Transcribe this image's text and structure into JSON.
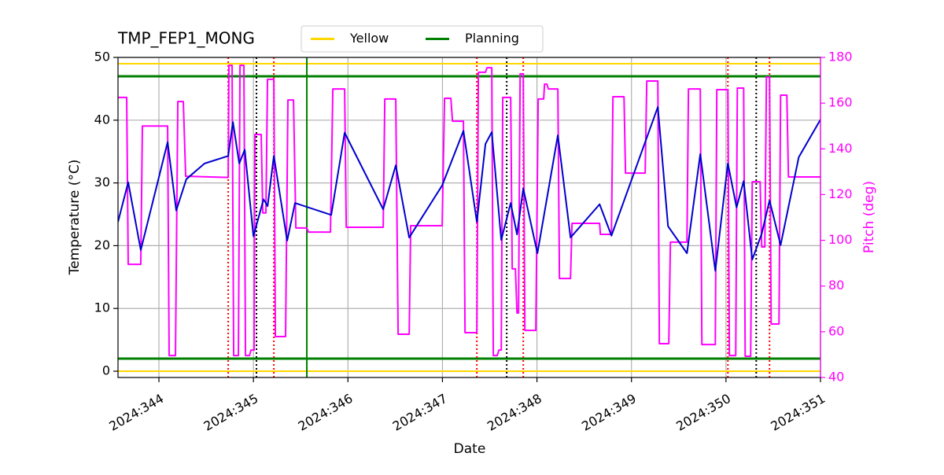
{
  "chart_data": {
    "type": "line",
    "title": "TMP_FEP1_MONG",
    "xlabel": "Date",
    "ylabel": "Temperature (°C)",
    "y2label": "Pitch (deg)",
    "grid": true,
    "xlim": [
      343.567,
      351
    ],
    "xticks": [
      {
        "value": 344,
        "label": "2024:344"
      },
      {
        "value": 345,
        "label": "2024:345"
      },
      {
        "value": 346,
        "label": "2024:346"
      },
      {
        "value": 347,
        "label": "2024:347"
      },
      {
        "value": 348,
        "label": "2024:348"
      },
      {
        "value": 349,
        "label": "2024:349"
      },
      {
        "value": 350,
        "label": "2024:350"
      },
      {
        "value": 351,
        "label": "2024:351"
      }
    ],
    "ylim": [
      -1,
      50
    ],
    "yticks": [
      0,
      10,
      20,
      30,
      40,
      50
    ],
    "y2lim": [
      40,
      180
    ],
    "y2ticks": [
      40,
      60,
      80,
      100,
      120,
      140,
      160,
      180
    ],
    "legend": "upper center",
    "reference_lines": [
      {
        "name": "Yellow",
        "color": "#ffd700",
        "values": [
          0,
          49
        ]
      },
      {
        "name": "Planning",
        "color": "#008000",
        "values": [
          2,
          47
        ]
      }
    ],
    "vlines": [
      {
        "color": "#ff0000",
        "style": "dotted",
        "x": [
          344.733,
          345.216,
          347.364,
          347.855,
          350.02,
          350.461
        ]
      },
      {
        "color": "#000000",
        "style": "dotted",
        "x": [
          345.032,
          347.68,
          350.32
        ]
      },
      {
        "color": "#008000",
        "style": "solid",
        "x": [
          345.565
        ]
      }
    ],
    "series": [
      {
        "color": "#0000cd",
        "x": [
          343.567,
          343.675,
          343.808,
          344.092,
          344.183,
          344.29,
          344.483,
          344.733,
          344.783,
          344.85,
          344.908,
          345.0,
          345.107,
          345.15,
          345.216,
          345.357,
          345.44,
          345.823,
          345.965,
          346.373,
          346.506,
          346.648,
          346.997,
          347.222,
          347.364,
          347.455,
          347.522,
          347.622,
          347.722,
          347.789,
          347.855,
          348.005,
          348.221,
          348.355,
          348.663,
          348.788,
          349.279,
          349.387,
          349.587,
          349.728,
          349.887,
          350.02,
          350.112,
          350.187,
          350.278,
          350.378,
          350.461,
          350.578,
          350.77,
          351.0
        ],
        "values": [
          23.8,
          30.1,
          19.3,
          36.5,
          25.6,
          30.6,
          33.1,
          34.3,
          39.7,
          33.1,
          35.3,
          21.5,
          27.4,
          26.3,
          34.3,
          20.8,
          26.8,
          24.9,
          38.0,
          25.8,
          32.8,
          21.3,
          29.6,
          38.3,
          23.8,
          36.2,
          38.1,
          20.9,
          26.8,
          21.8,
          29.1,
          18.8,
          37.6,
          21.3,
          26.6,
          21.6,
          42.1,
          23.1,
          18.8,
          34.6,
          16.0,
          33.1,
          26.1,
          30.3,
          17.8,
          21.9,
          27.2,
          20.1,
          34.1,
          40.1
        ]
      },
      {
        "color": "#ff00ff",
        "axis": "y2",
        "x": [
          343.567,
          343.659,
          343.675,
          343.808,
          343.825,
          344.092,
          344.108,
          344.175,
          344.2,
          344.258,
          344.283,
          344.733,
          344.741,
          344.774,
          344.791,
          344.841,
          344.858,
          344.899,
          344.916,
          344.958,
          344.974,
          345.007,
          345.016,
          345.082,
          345.099,
          345.132,
          345.149,
          345.216,
          345.232,
          345.34,
          345.365,
          345.424,
          345.449,
          345.565,
          345.582,
          345.815,
          345.84,
          345.965,
          345.982,
          346.373,
          346.39,
          346.506,
          346.531,
          346.648,
          346.664,
          346.997,
          347.022,
          347.089,
          347.106,
          347.222,
          347.239,
          347.364,
          347.38,
          347.455,
          347.472,
          347.522,
          347.538,
          347.58,
          347.597,
          347.622,
          347.638,
          347.722,
          347.738,
          347.772,
          347.789,
          347.805,
          347.822,
          347.855,
          347.872,
          347.988,
          348.013,
          348.071,
          348.08,
          348.105,
          348.121,
          348.221,
          348.238,
          348.355,
          348.371,
          348.663,
          348.671,
          348.788,
          348.804,
          348.921,
          348.937,
          349.145,
          349.162,
          349.279,
          349.295,
          349.395,
          349.412,
          349.587,
          349.603,
          349.728,
          349.745,
          349.887,
          349.903,
          350.02,
          350.036,
          350.103,
          350.12,
          350.187,
          350.203,
          350.261,
          350.278,
          350.361,
          350.378,
          350.411,
          350.428,
          350.461,
          350.478,
          350.561,
          350.578,
          350.644,
          350.661,
          351.0
        ],
        "values": [
          162.5,
          162.5,
          89.5,
          89.5,
          150,
          150,
          49.6,
          49.6,
          160.7,
          160.7,
          128,
          127.5,
          176.5,
          176.5,
          49.6,
          49.6,
          176.5,
          176.5,
          49.6,
          49.6,
          52,
          52,
          146.3,
          146.3,
          112,
          112,
          170.4,
          170.4,
          57.9,
          57.9,
          161.4,
          161.4,
          105.4,
          105.4,
          103.6,
          103.6,
          166.2,
          166.2,
          105.7,
          105.7,
          161.8,
          161.8,
          58.9,
          58.9,
          106.4,
          106.4,
          162.1,
          162.1,
          152.1,
          152.1,
          59.6,
          59.6,
          173.5,
          173.5,
          175.5,
          175.5,
          49.6,
          49.6,
          52,
          52,
          162.5,
          162.5,
          87.5,
          87.5,
          68.2,
          68.2,
          172.8,
          172.8,
          60.6,
          60.6,
          161.8,
          161.8,
          168.3,
          168.3,
          166.2,
          166.2,
          83.3,
          83.3,
          107.4,
          107.4,
          102.6,
          102.6,
          162.8,
          162.8,
          129.4,
          129.4,
          169.7,
          169.7,
          54.8,
          54.8,
          99.2,
          99.2,
          166.2,
          166.2,
          54.4,
          54.4,
          165.9,
          165.9,
          49.6,
          49.6,
          166.6,
          166.6,
          49.3,
          49.3,
          125.6,
          125.6,
          97.1,
          97.1,
          171.4,
          171.4,
          63.4,
          63.4,
          163.5,
          163.5,
          127.7,
          127.7
        ]
      }
    ]
  }
}
